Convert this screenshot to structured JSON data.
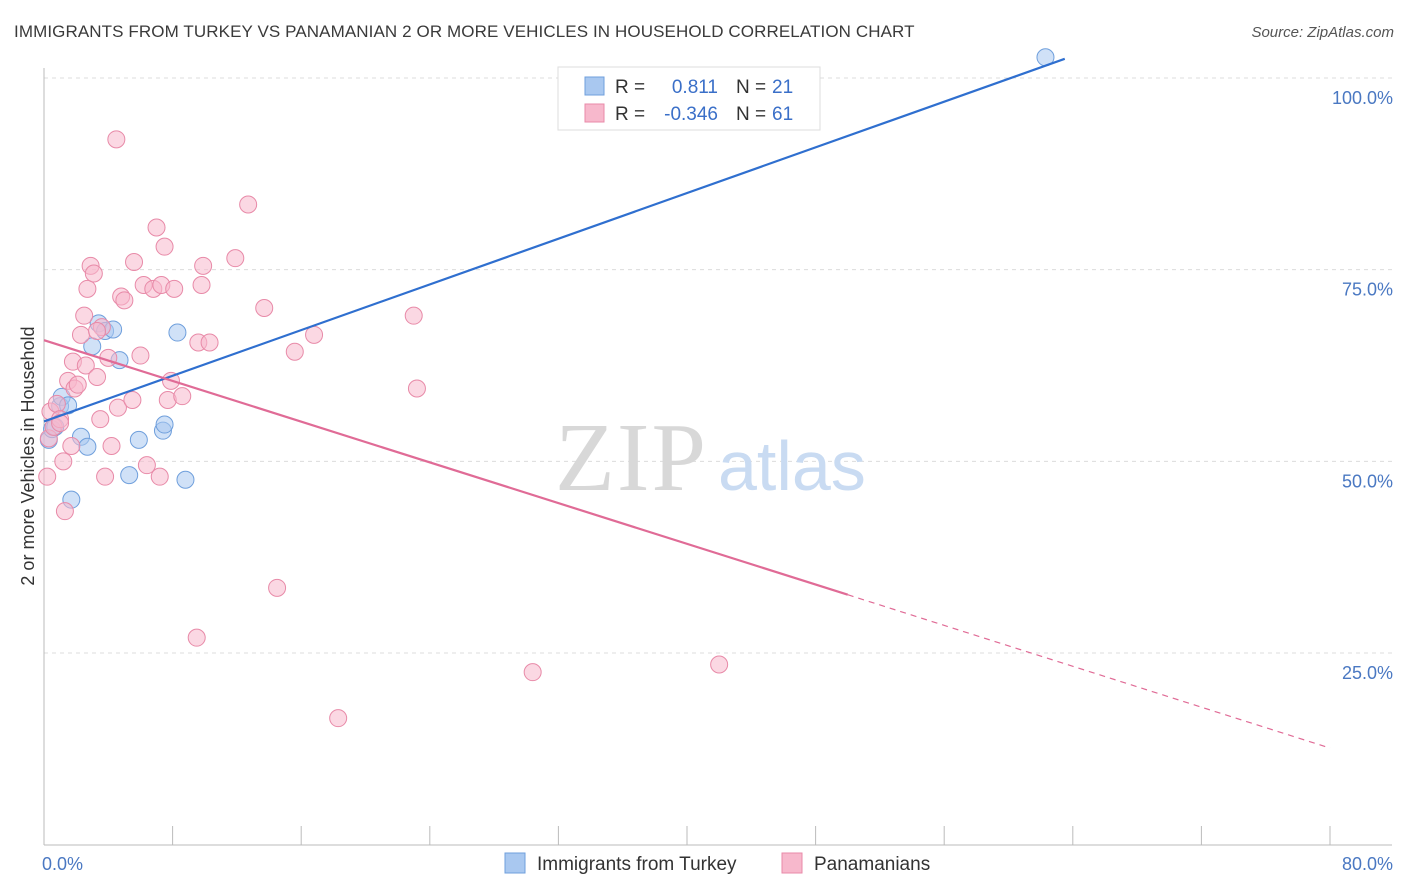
{
  "title": "IMMIGRANTS FROM TURKEY VS PANAMANIAN 2 OR MORE VEHICLES IN HOUSEHOLD CORRELATION CHART",
  "source": "Source: ZipAtlas.com",
  "watermark": {
    "zip": "ZIP",
    "atlas": "atlas"
  },
  "chart_data": {
    "type": "scatter",
    "ylabel": "2 or more Vehicles in Household",
    "xlabel": "",
    "xlim": [
      0,
      80
    ],
    "ylim": [
      0,
      105
    ],
    "x_tick_labels": {
      "min": "0.0%",
      "max": "80.0%"
    },
    "y_ticks": [
      {
        "value": 25,
        "label": "25.0%"
      },
      {
        "value": 50,
        "label": "50.0%"
      },
      {
        "value": 75,
        "label": "75.0%"
      },
      {
        "value": 100,
        "label": "100.0%"
      }
    ],
    "grid": "horizontal dashed",
    "legend_position": "top-center",
    "series": [
      {
        "name": "Immigrants from Turkey",
        "color": "#a9c8f0",
        "stroke": "#6f9fdc",
        "line_color": "#2f6fcf",
        "r_label": "R =",
        "r_value": "0.811",
        "n_label": "N =",
        "n_value": "21",
        "trend": {
          "x0": 0,
          "y0": 55.2,
          "x1": 63.5,
          "y1": 102.5
        },
        "points": [
          [
            0.3,
            52.8
          ],
          [
            0.5,
            54.2
          ],
          [
            0.7,
            54.5
          ],
          [
            1.0,
            57.2
          ],
          [
            1.1,
            58.4
          ],
          [
            1.5,
            57.3
          ],
          [
            1.7,
            45.0
          ],
          [
            2.3,
            53.2
          ],
          [
            2.7,
            51.9
          ],
          [
            3.0,
            65.0
          ],
          [
            3.4,
            68.0
          ],
          [
            3.8,
            67.0
          ],
          [
            4.3,
            67.2
          ],
          [
            4.7,
            63.2
          ],
          [
            5.3,
            48.2
          ],
          [
            5.9,
            52.8
          ],
          [
            7.4,
            54.0
          ],
          [
            7.5,
            54.8
          ],
          [
            8.3,
            66.8
          ],
          [
            8.8,
            47.6
          ],
          [
            62.3,
            102.7
          ]
        ]
      },
      {
        "name": "Panamanians",
        "color": "#f7b8cc",
        "stroke": "#e88aa8",
        "line_color": "#e06b96",
        "r_label": "R =",
        "r_value": "-0.346",
        "n_label": "N =",
        "n_value": "61",
        "trend": {
          "x0": 0,
          "y0": 65.8,
          "x1": 50.0,
          "y1": 32.6
        },
        "trend_dashed": {
          "x0": 50.0,
          "y0": 32.6,
          "x1": 80.0,
          "y1": 12.6
        },
        "points": [
          [
            0.2,
            48.0
          ],
          [
            0.3,
            53.0
          ],
          [
            0.4,
            56.5
          ],
          [
            0.6,
            54.5
          ],
          [
            0.8,
            57.5
          ],
          [
            1.0,
            55.5
          ],
          [
            1.2,
            50.0
          ],
          [
            1.3,
            43.5
          ],
          [
            1.5,
            60.5
          ],
          [
            1.7,
            52.0
          ],
          [
            1.8,
            63.0
          ],
          [
            1.9,
            59.5
          ],
          [
            2.1,
            60.0
          ],
          [
            2.3,
            66.5
          ],
          [
            2.5,
            69.0
          ],
          [
            2.6,
            62.5
          ],
          [
            2.7,
            72.5
          ],
          [
            2.9,
            75.5
          ],
          [
            3.1,
            74.5
          ],
          [
            3.3,
            61.0
          ],
          [
            3.5,
            55.5
          ],
          [
            3.6,
            67.5
          ],
          [
            3.8,
            48.0
          ],
          [
            4.0,
            63.5
          ],
          [
            4.2,
            52.0
          ],
          [
            4.5,
            92.0
          ],
          [
            4.6,
            57.0
          ],
          [
            4.8,
            71.5
          ],
          [
            5.0,
            71.0
          ],
          [
            5.5,
            58.0
          ],
          [
            5.6,
            76.0
          ],
          [
            6.0,
            63.8
          ],
          [
            6.2,
            73.0
          ],
          [
            6.4,
            49.5
          ],
          [
            6.8,
            72.5
          ],
          [
            7.0,
            80.5
          ],
          [
            7.2,
            48.0
          ],
          [
            7.3,
            73.0
          ],
          [
            7.5,
            78.0
          ],
          [
            7.7,
            58.0
          ],
          [
            7.9,
            60.5
          ],
          [
            8.1,
            72.5
          ],
          [
            8.6,
            58.5
          ],
          [
            9.5,
            27.0
          ],
          [
            9.6,
            65.5
          ],
          [
            9.8,
            73.0
          ],
          [
            9.9,
            75.5
          ],
          [
            10.3,
            65.5
          ],
          [
            11.9,
            76.5
          ],
          [
            12.7,
            83.5
          ],
          [
            13.7,
            70.0
          ],
          [
            14.5,
            33.5
          ],
          [
            15.6,
            64.3
          ],
          [
            16.8,
            66.5
          ],
          [
            18.3,
            16.5
          ],
          [
            23.0,
            69.0
          ],
          [
            23.2,
            59.5
          ],
          [
            30.4,
            22.5
          ],
          [
            42.0,
            23.5
          ],
          [
            1.0,
            55.0
          ],
          [
            3.3,
            67.0
          ]
        ]
      }
    ]
  }
}
